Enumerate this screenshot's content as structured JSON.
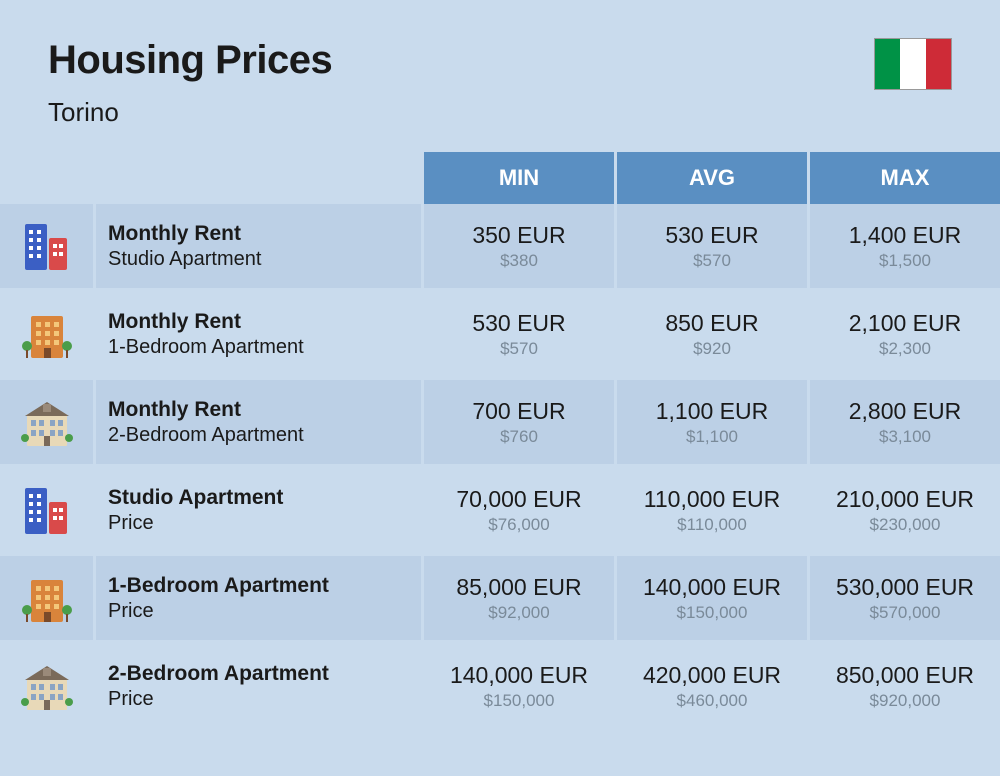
{
  "header": {
    "title": "Housing Prices",
    "city": "Torino",
    "flag_colors": [
      "#009246",
      "#ffffff",
      "#ce2b37"
    ]
  },
  "columns": [
    "MIN",
    "AVG",
    "MAX"
  ],
  "rows": [
    {
      "icon": "studio",
      "label_top": "Monthly Rent",
      "label_bot": "Studio Apartment",
      "min_eur": "350 EUR",
      "min_usd": "$380",
      "avg_eur": "530 EUR",
      "avg_usd": "$570",
      "max_eur": "1,400 EUR",
      "max_usd": "$1,500"
    },
    {
      "icon": "1br",
      "label_top": "Monthly Rent",
      "label_bot": "1-Bedroom Apartment",
      "min_eur": "530 EUR",
      "min_usd": "$570",
      "avg_eur": "850 EUR",
      "avg_usd": "$920",
      "max_eur": "2,100 EUR",
      "max_usd": "$2,300"
    },
    {
      "icon": "2br",
      "label_top": "Monthly Rent",
      "label_bot": "2-Bedroom Apartment",
      "min_eur": "700 EUR",
      "min_usd": "$760",
      "avg_eur": "1,100 EUR",
      "avg_usd": "$1,100",
      "max_eur": "2,800 EUR",
      "max_usd": "$3,100"
    },
    {
      "icon": "studio",
      "label_top": "Studio Apartment",
      "label_bot": "Price",
      "min_eur": "70,000 EUR",
      "min_usd": "$76,000",
      "avg_eur": "110,000 EUR",
      "avg_usd": "$110,000",
      "max_eur": "210,000 EUR",
      "max_usd": "$230,000"
    },
    {
      "icon": "1br",
      "label_top": "1-Bedroom Apartment",
      "label_bot": "Price",
      "min_eur": "85,000 EUR",
      "min_usd": "$92,000",
      "avg_eur": "140,000 EUR",
      "avg_usd": "$150,000",
      "max_eur": "530,000 EUR",
      "max_usd": "$570,000"
    },
    {
      "icon": "2br",
      "label_top": "2-Bedroom Apartment",
      "label_bot": "Price",
      "min_eur": "140,000 EUR",
      "min_usd": "$150,000",
      "avg_eur": "420,000 EUR",
      "avg_usd": "$460,000",
      "max_eur": "850,000 EUR",
      "max_usd": "$920,000"
    }
  ],
  "icons": {
    "studio": {
      "type": "tall",
      "colors": [
        "#3b5fc4",
        "#d94a4a"
      ]
    },
    "1br": {
      "type": "mid",
      "colors": [
        "#d9843b",
        "#4a9d4a"
      ]
    },
    "2br": {
      "type": "house",
      "colors": [
        "#e8d9b8",
        "#7a6a5a"
      ]
    }
  },
  "styling": {
    "page_bg": "#c9dbed",
    "header_color": "#5a8fc2",
    "row_alt_bg": "#bcd0e6",
    "text_primary": "#1a1a1a",
    "text_secondary": "#7a8a99"
  }
}
